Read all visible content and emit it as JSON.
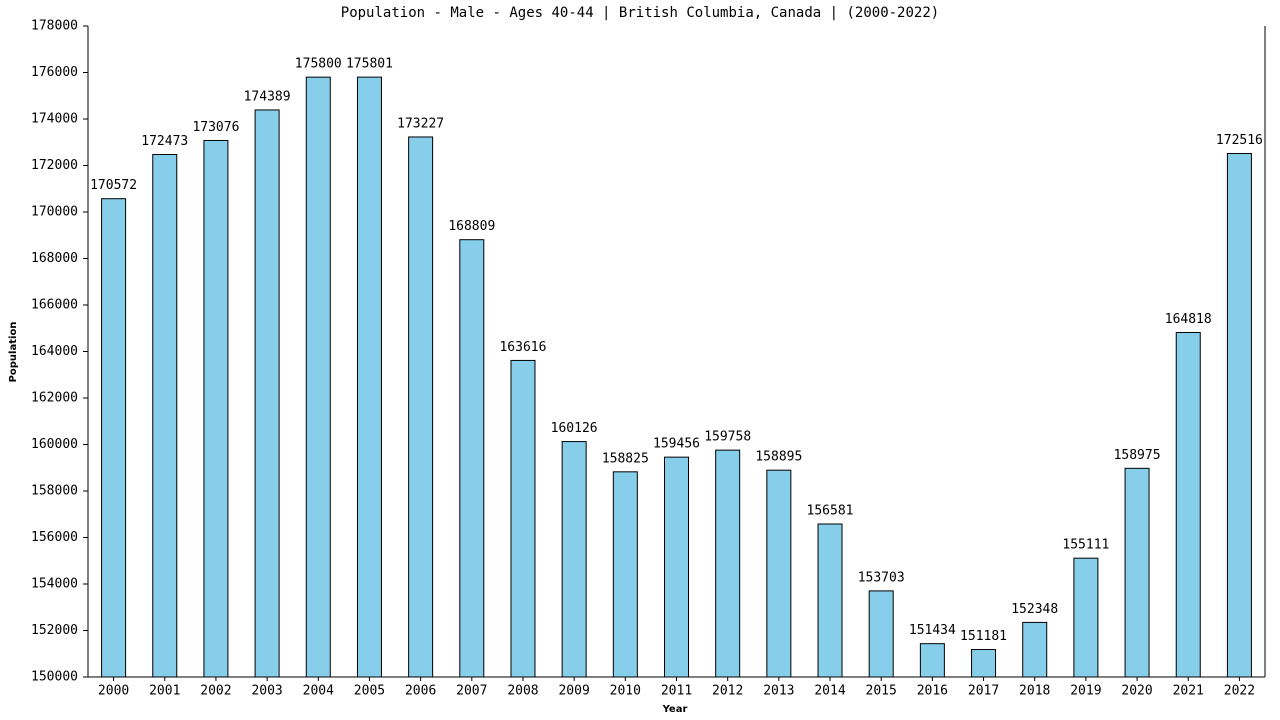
{
  "chart_data": {
    "type": "bar",
    "title": "Population - Male - Ages 40-44 | British Columbia, Canada |  (2000-2022)",
    "x_label": "Year",
    "y_label": "Population",
    "categories": [
      "2000",
      "2001",
      "2002",
      "2003",
      "2004",
      "2005",
      "2006",
      "2007",
      "2008",
      "2009",
      "2010",
      "2011",
      "2012",
      "2013",
      "2014",
      "2015",
      "2016",
      "2017",
      "2018",
      "2019",
      "2020",
      "2021",
      "2022"
    ],
    "values": [
      170572,
      172473,
      173076,
      174389,
      175800,
      175801,
      173227,
      168809,
      163616,
      160126,
      158825,
      159456,
      159758,
      158895,
      156581,
      153703,
      151434,
      151181,
      152348,
      155111,
      158975,
      164818,
      172516
    ],
    "color": "#87ceeb",
    "ylim": [
      150000,
      178000
    ],
    "yticks": [
      150000,
      152000,
      154000,
      156000,
      158000,
      160000,
      162000,
      164000,
      166000,
      168000,
      170000,
      172000,
      174000,
      176000,
      178000
    ],
    "grid": false
  }
}
